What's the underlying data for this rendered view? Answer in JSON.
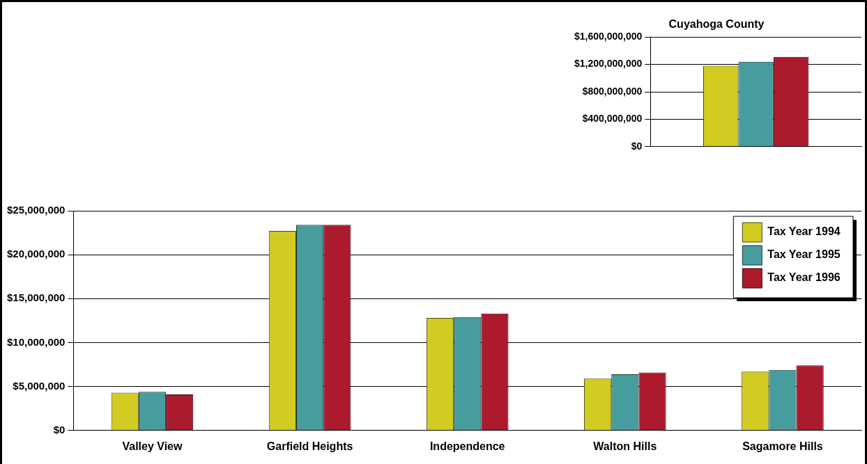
{
  "chart_data": [
    {
      "type": "bar",
      "title": "Cuyahoga County",
      "categories": [
        null
      ],
      "series": [
        {
          "color": "#d2cb22",
          "values": [
            1180000000
          ]
        },
        {
          "color": "#479c9e",
          "values": [
            1240000000
          ]
        },
        {
          "color": "#ac1a2e",
          "values": [
            1310000000
          ]
        }
      ],
      "ylim": [
        0,
        1600000000
      ],
      "yticks": [
        {
          "value": 0,
          "label": "$0"
        },
        {
          "value": 400000000,
          "label": "$400,000,000"
        },
        {
          "value": 800000000,
          "label": "$800,000,000"
        },
        {
          "value": 1200000000,
          "label": "$1,200,000,000"
        },
        {
          "value": 1600000000,
          "label": "$1,600,000,000"
        }
      ],
      "grid": "y",
      "legend": false
    },
    {
      "type": "bar",
      "categories": [
        "Valley View",
        "Garfield Heights",
        "Independence",
        "Walton Hills",
        "Sagamore Hills"
      ],
      "series": [
        {
          "name": "Tax Year 1994",
          "color": "#d2cb22",
          "values": [
            4300000,
            22700000,
            12800000,
            5900000,
            6700000
          ]
        },
        {
          "name": "Tax Year 1995",
          "color": "#479c9e",
          "values": [
            4400000,
            23400000,
            12900000,
            6400000,
            6900000
          ]
        },
        {
          "name": "Tax Year 1996",
          "color": "#ac1a2e",
          "values": [
            4100000,
            23400000,
            13300000,
            6600000,
            7400000
          ]
        }
      ],
      "ylim": [
        0,
        25000000
      ],
      "yticks": [
        {
          "value": 0,
          "label": "$0"
        },
        {
          "value": 5000000,
          "label": "$5,000,000"
        },
        {
          "value": 10000000,
          "label": "$10,000,000"
        },
        {
          "value": 15000000,
          "label": "$15,000,000"
        },
        {
          "value": 20000000,
          "label": "$20,000,000"
        },
        {
          "value": 25000000,
          "label": "$25,000,000"
        }
      ],
      "grid": "y",
      "legend": "top right"
    }
  ]
}
